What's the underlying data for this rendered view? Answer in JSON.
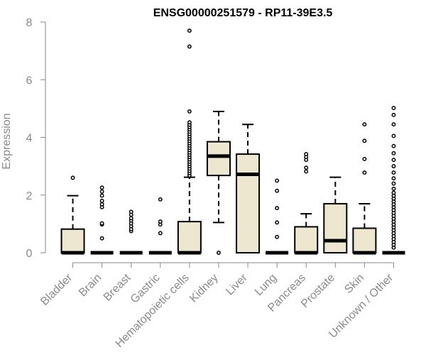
{
  "chart_data": {
    "type": "boxplot",
    "title": "ENSG00000251579 - RP11-39E3.5",
    "xlabel": "",
    "ylabel": "Expression",
    "ylim": [
      0,
      8
    ],
    "yticks": [
      0,
      2,
      4,
      6,
      8
    ],
    "grid": false,
    "categories": [
      "Bladder",
      "Brain",
      "Breast",
      "Gastric",
      "Hematopoietic cells",
      "Kidney",
      "Liver",
      "Lung",
      "Pancreas",
      "Prostate",
      "Skin",
      "Unknown / Other"
    ],
    "boxes": [
      {
        "min": 0,
        "q1": 0,
        "median": 0,
        "q3": 0.82,
        "max": 1.98,
        "outliers": [
          2.6
        ]
      },
      {
        "min": 0,
        "q1": 0,
        "median": 0,
        "q3": 0,
        "max": 0,
        "outliers": [
          0.5,
          0.98,
          1.02,
          1.58,
          1.68,
          1.8,
          1.98,
          2.12,
          2.26
        ]
      },
      {
        "min": 0,
        "q1": 0,
        "median": 0,
        "q3": 0,
        "max": 0,
        "outliers": [
          0.75,
          0.82,
          0.92,
          1.02,
          1.12,
          1.2,
          1.32,
          1.42
        ]
      },
      {
        "min": 0,
        "q1": 0,
        "median": 0,
        "q3": 0,
        "max": 0,
        "outliers": [
          0.68,
          0.98,
          1.08,
          1.85
        ]
      },
      {
        "min": 0,
        "q1": 0,
        "median": 0,
        "q3": 1.08,
        "max": 2.62,
        "outliers": [
          2.68,
          2.76,
          2.84,
          2.92,
          3.0,
          3.08,
          3.16,
          3.24,
          3.32,
          3.4,
          3.48,
          3.56,
          3.64,
          3.72,
          3.8,
          3.88,
          3.96,
          4.04,
          4.12,
          4.2,
          4.28,
          4.36,
          4.44,
          4.52,
          4.9,
          7.15,
          7.7
        ]
      },
      {
        "min": 1.05,
        "q1": 2.68,
        "median": 3.35,
        "q3": 3.85,
        "max": 4.9,
        "outliers": [
          0
        ]
      },
      {
        "min": 0,
        "q1": 0,
        "median": 2.72,
        "q3": 3.42,
        "max": 4.45,
        "outliers": []
      },
      {
        "min": 0,
        "q1": 0,
        "median": 0,
        "q3": 0,
        "max": 0,
        "outliers": [
          0.55,
          1.05,
          1.55,
          2.15,
          2.5
        ]
      },
      {
        "min": 0,
        "q1": 0,
        "median": 0,
        "q3": 0.9,
        "max": 1.35,
        "outliers": [
          2.82,
          2.95,
          3.22,
          3.32,
          3.42
        ]
      },
      {
        "min": 0,
        "q1": 0,
        "median": 0.42,
        "q3": 1.7,
        "max": 2.62,
        "outliers": []
      },
      {
        "min": 0,
        "q1": 0,
        "median": 0,
        "q3": 0.85,
        "max": 1.7,
        "outliers": [
          2.78,
          3.25,
          3.88,
          4.45
        ]
      },
      {
        "min": 0,
        "q1": 0,
        "median": 0,
        "q3": 0,
        "max": 0,
        "outliers": [
          0.18,
          0.28,
          0.38,
          0.48,
          0.58,
          0.68,
          0.78,
          0.88,
          0.98,
          1.08,
          1.18,
          1.28,
          1.38,
          1.48,
          1.58,
          1.68,
          1.78,
          1.88,
          1.98,
          2.08,
          2.22,
          2.4,
          2.58,
          2.78,
          3.0,
          3.22,
          3.45,
          3.7,
          4.05,
          4.45,
          4.78,
          5.02
        ]
      }
    ]
  },
  "colors": {
    "box_fill": "#eee7cf",
    "box_stroke": "#000000",
    "axis": "#8a8a8a",
    "outlier_stroke": "#000000"
  }
}
